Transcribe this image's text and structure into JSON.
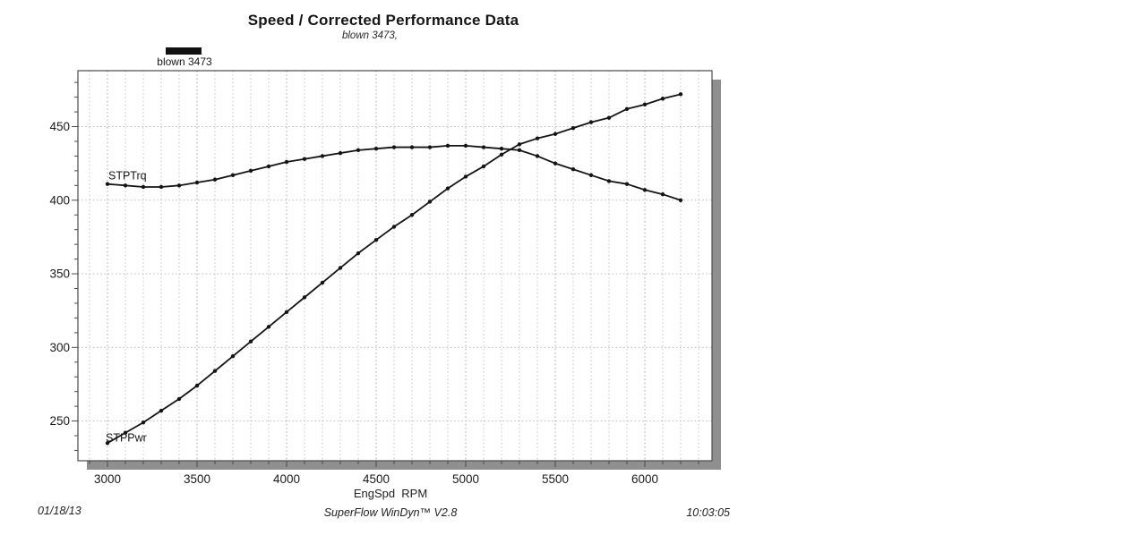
{
  "header": {
    "title": "Speed / Corrected Performance Data",
    "subtitle": "blown 3473,"
  },
  "legend": {
    "label": "blown 3473",
    "swatch_color": "#111111"
  },
  "footer": {
    "date": "01/18/13",
    "software": "SuperFlow WinDyn™ V2.8",
    "time": "10:03:05"
  },
  "chart_data": {
    "type": "line",
    "title": "Speed / Corrected Performance Data",
    "subtitle": "blown 3473,",
    "xlabel": "EngSpd  RPM",
    "ylabel": "",
    "x": [
      3000,
      3100,
      3200,
      3300,
      3400,
      3500,
      3600,
      3700,
      3800,
      3900,
      4000,
      4100,
      4200,
      4300,
      4400,
      4500,
      4600,
      4700,
      4800,
      4900,
      5000,
      5100,
      5200,
      5300,
      5400,
      5500,
      5600,
      5700,
      5800,
      5900,
      6000,
      6100,
      6200
    ],
    "series": [
      {
        "name": "STPTrq",
        "values": [
          411,
          410,
          409,
          409,
          410,
          412,
          414,
          417,
          420,
          423,
          426,
          428,
          430,
          432,
          434,
          435,
          436,
          436,
          436,
          437,
          437,
          436,
          435,
          434,
          430,
          425,
          421,
          417,
          413,
          411,
          407,
          404,
          400
        ]
      },
      {
        "name": "STPPwr",
        "values": [
          235,
          242,
          249,
          257,
          265,
          274,
          284,
          294,
          304,
          314,
          324,
          334,
          344,
          354,
          364,
          373,
          382,
          390,
          399,
          408,
          416,
          423,
          431,
          438,
          442,
          445,
          449,
          453,
          456,
          462,
          465,
          469,
          472
        ]
      }
    ],
    "xlim": [
      2835,
      6375
    ],
    "ylim": [
      223,
      488
    ],
    "x_ticks_major": [
      3000,
      3500,
      4000,
      4500,
      5000,
      5500,
      6000
    ],
    "x_minor_step": 100,
    "y_ticks_major": [
      250,
      300,
      350,
      400,
      450
    ],
    "y_minor_step": 10,
    "grid": "dotted",
    "legend_position": "top-left",
    "line_color": "#141414",
    "grid_color": "#c6c6c6",
    "frame_color": "#4a4a4a",
    "shadow_color": "#8f8f8f"
  }
}
